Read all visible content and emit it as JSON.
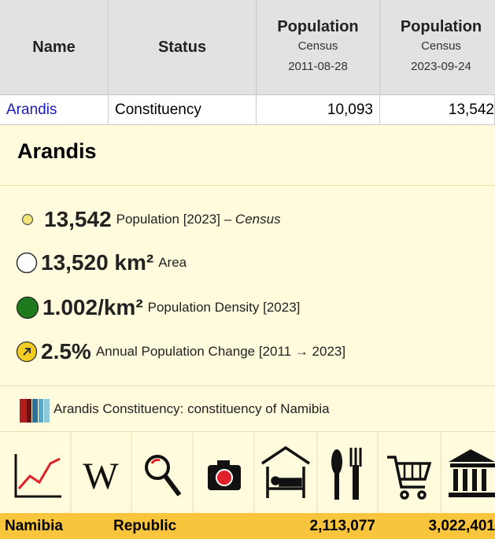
{
  "table": {
    "header": {
      "name": "Name",
      "status": "Status",
      "columns": [
        {
          "title": "Population",
          "source": "Census",
          "date": "2011-08-28"
        },
        {
          "title": "Population",
          "source": "Census",
          "date": "2023-09-24"
        }
      ]
    },
    "rows": [
      [
        "Arandis",
        "Constituency",
        "10,093",
        "13,542"
      ]
    ]
  },
  "panel": {
    "title": "Arandis",
    "stats": [
      {
        "value": "13,542",
        "label": "Population [2023]",
        "separator": "–",
        "source": "Census"
      },
      {
        "value": "13,520 km²",
        "label": "Area"
      },
      {
        "value": "1.002/km²",
        "label": "Population Density [2023]"
      },
      {
        "value": "2.5%",
        "label": "Annual Population Change [2011 → 2023]"
      }
    ],
    "description": "Arandis Constituency: constituency of Namibia"
  },
  "footer_row": [
    "Namibia",
    "Republic",
    "2,113,077",
    "3,022,401"
  ]
}
